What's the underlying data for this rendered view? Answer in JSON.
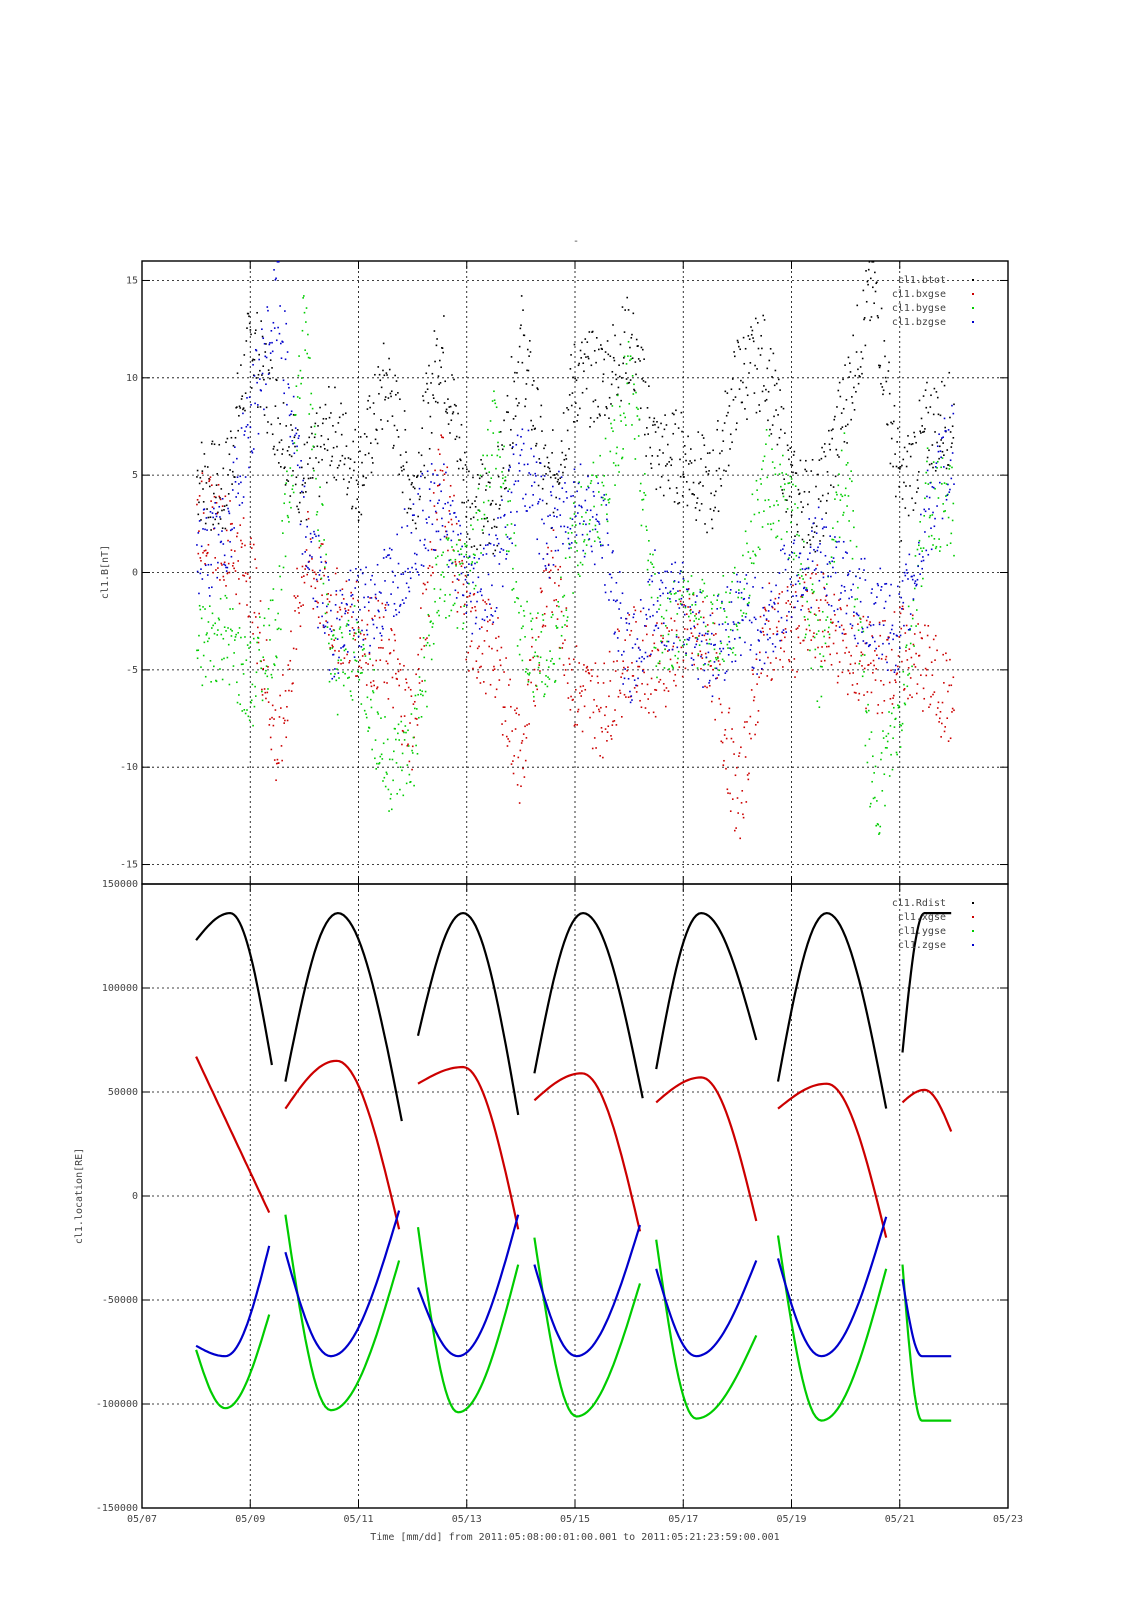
{
  "plot_title": "-",
  "footer": "Time [mm/dd]  from 2011:05:08:00:01:00.001  to  2011:05:21:23:59:00.001",
  "x_axis": {
    "type": "time",
    "range_days": [
      "2011-05-07",
      "2011-05-23"
    ],
    "ticks": [
      "05/07",
      "05/09",
      "05/11",
      "05/13",
      "05/15",
      "05/17",
      "05/19",
      "05/21",
      "05/23"
    ]
  },
  "colors": {
    "black": "#000000",
    "red": "#cc0000",
    "green": "#00cc00",
    "blue": "#0000cc"
  },
  "chart_data": [
    {
      "type": "scatter",
      "title": "",
      "ylabel": "cl1.B[nT]",
      "xlabel": "",
      "ylim": [
        -16,
        16
      ],
      "y_ticks": [
        "15",
        "10",
        "5",
        "0",
        "-5",
        "-10",
        "-15"
      ],
      "grid": true,
      "legend_position": "top-right",
      "series": [
        {
          "name": "cl1.btot",
          "color": "black",
          "x": [
            "05/08",
            "05/08.5",
            "05/09",
            "05/09.5",
            "05/10",
            "05/10.5",
            "05/11",
            "05/11.5",
            "05/12",
            "05/12.5",
            "05/13",
            "05/13.5",
            "05/14",
            "05/14.5",
            "05/15",
            "05/15.5",
            "05/16",
            "05/16.5",
            "05/17",
            "05/17.5",
            "05/18",
            "05/18.5",
            "05/19",
            "05/19.5",
            "05/20",
            "05/20.5",
            "05/21",
            "05/21.5",
            "05/22"
          ],
          "y": [
            5,
            4,
            12,
            8,
            4.5,
            7.5,
            5,
            10,
            4,
            12,
            4,
            3,
            12,
            4,
            10,
            10,
            12,
            6,
            6,
            4,
            10,
            11,
            4,
            3.5,
            9,
            15,
            4,
            7.5,
            8
          ]
        },
        {
          "name": "cl1.bxgse",
          "color": "red",
          "x": [
            "05/08",
            "05/08.5",
            "05/09",
            "05/09.5",
            "05/10",
            "05/10.5",
            "05/11",
            "05/11.5",
            "05/12",
            "05/12.5",
            "05/13",
            "05/13.5",
            "05/14",
            "05/14.5",
            "05/15",
            "05/15.5",
            "05/16",
            "05/16.5",
            "05/17",
            "05/17.5",
            "05/18",
            "05/18.5",
            "05/19",
            "05/19.5",
            "05/20",
            "05/20.5",
            "05/21",
            "05/21.5",
            "05/22"
          ],
          "y": [
            3,
            2,
            0,
            -9.5,
            1,
            -2,
            -3,
            -4,
            -8,
            6,
            -3,
            -4,
            -10,
            1,
            -6,
            -7,
            -4,
            -5,
            -3,
            -4,
            -12,
            -3,
            -3,
            -2,
            -4,
            -5,
            -4,
            -5,
            -7
          ]
        },
        {
          "name": "cl1.bygse",
          "color": "green",
          "x": [
            "05/08",
            "05/08.5",
            "05/09",
            "05/09.5",
            "05/10",
            "05/10.5",
            "05/11",
            "05/11.5",
            "05/12",
            "05/12.5",
            "05/13",
            "05/13.5",
            "05/14",
            "05/14.5",
            "05/15",
            "05/15.5",
            "05/16",
            "05/16.5",
            "05/17",
            "05/17.5",
            "05/18",
            "05/18.5",
            "05/19",
            "05/19.5",
            "05/20",
            "05/20.5",
            "05/21",
            "05/21.5",
            "05/22"
          ],
          "y": [
            -4,
            -3,
            -6,
            -2,
            13,
            -5,
            -4,
            -10,
            -9,
            0,
            -1,
            8,
            -3,
            -5,
            2,
            4,
            10,
            -3,
            -2,
            -3,
            -2,
            5,
            3,
            -5,
            6,
            -12,
            -7,
            4,
            3
          ]
        },
        {
          "name": "cl1.bzgse",
          "color": "blue",
          "x": [
            "05/08",
            "05/08.5",
            "05/09",
            "05/09.5",
            "05/10",
            "05/10.5",
            "05/11",
            "05/11.5",
            "05/12",
            "05/12.5",
            "05/13",
            "05/13.5",
            "05/14",
            "05/14.5",
            "05/15",
            "05/15.5",
            "05/16",
            "05/16.5",
            "05/17",
            "05/17.5",
            "05/18",
            "05/18.5",
            "05/19",
            "05/19.5",
            "05/20",
            "05/20.5",
            "05/21",
            "05/21.5",
            "05/22"
          ],
          "y": [
            1,
            1.5,
            8,
            14,
            2,
            -3,
            -2,
            -1,
            2,
            4,
            -1,
            0,
            6,
            2,
            4,
            2,
            -5,
            -1,
            -2,
            -4,
            -2,
            -3,
            0,
            1,
            -1,
            -2,
            -3,
            3,
            7
          ]
        }
      ]
    },
    {
      "type": "line",
      "title": "",
      "ylabel": "cl1.location[RE]",
      "xlabel": "Time [mm/dd]",
      "ylim": [
        -150000,
        150000
      ],
      "y_ticks": [
        "150000",
        "100000",
        "50000",
        "0",
        "-50000",
        "-100000",
        "-150000"
      ],
      "grid": true,
      "legend_position": "top-right",
      "series": [
        {
          "name": "cl1.Rdist",
          "color": "black",
          "segments": [
            {
              "x0": "05/08.0",
              "x1": "05/09.4",
              "y0": 123000,
              "ymax": 136000,
              "y1": 63000
            },
            {
              "x0": "05/09.65",
              "x1": "05/11.8",
              "y0": 55000,
              "ymax": 136000,
              "y1": 36000
            },
            {
              "x0": "05/12.1",
              "x1": "05/13.95",
              "y0": 77000,
              "ymax": 136000,
              "y1": 39000
            },
            {
              "x0": "05/14.25",
              "x1": "05/16.25",
              "y0": 59000,
              "ymax": 136000,
              "y1": 47000
            },
            {
              "x0": "05/16.5",
              "x1": "05/18.35",
              "y0": 61000,
              "ymax": 136000,
              "y1": 75000
            },
            {
              "x0": "05/18.75",
              "x1": "05/20.75",
              "y0": 55000,
              "ymax": 136000,
              "y1": 42000
            },
            {
              "x0": "05/21.05",
              "x1": "05/21.95",
              "y0": 69000,
              "ymax": 136000,
              "y1": 136000
            }
          ]
        },
        {
          "name": "cl1.xgse",
          "color": "red",
          "segments": [
            {
              "x0": "05/08.0",
              "x1": "05/09.35",
              "y0": 67000,
              "y1": -8000
            },
            {
              "x0": "05/09.65",
              "x1": "05/11.75",
              "y0": 42000,
              "ymax": 65000,
              "y1": -16000
            },
            {
              "x0": "05/12.1",
              "x1": "05/13.95",
              "y0": 54000,
              "ymax": 62000,
              "y1": -16000
            },
            {
              "x0": "05/14.25",
              "x1": "05/16.2",
              "y0": 46000,
              "ymax": 59000,
              "y1": -17000
            },
            {
              "x0": "05/16.5",
              "x1": "05/18.35",
              "y0": 45000,
              "ymax": 57000,
              "y1": -12000
            },
            {
              "x0": "05/18.75",
              "x1": "05/20.75",
              "y0": 42000,
              "ymax": 54000,
              "y1": -20000
            },
            {
              "x0": "05/21.05",
              "x1": "05/21.95",
              "y0": 45000,
              "ymax": 51000,
              "y1": 31000
            }
          ]
        },
        {
          "name": "cl1.ygse",
          "color": "green",
          "segments": [
            {
              "x0": "05/08.0",
              "x1": "05/09.35",
              "y0": -74000,
              "ymin": -102000,
              "y1": -57000
            },
            {
              "x0": "05/09.65",
              "x1": "05/11.75",
              "y0": -9000,
              "ymin": -103000,
              "y1": -31000
            },
            {
              "x0": "05/12.1",
              "x1": "05/13.95",
              "y0": -15000,
              "ymin": -104000,
              "y1": -33000
            },
            {
              "x0": "05/14.25",
              "x1": "05/16.2",
              "y0": -20000,
              "ymin": -106000,
              "y1": -42000
            },
            {
              "x0": "05/16.5",
              "x1": "05/18.35",
              "y0": -21000,
              "ymin": -107000,
              "y1": -67000
            },
            {
              "x0": "05/18.75",
              "x1": "05/20.75",
              "y0": -19000,
              "ymin": -108000,
              "y1": -35000
            },
            {
              "x0": "05/21.05",
              "x1": "05/21.95",
              "y0": -33000,
              "ymin": -108000,
              "y1": -108000
            }
          ]
        },
        {
          "name": "cl1.zgse",
          "color": "blue",
          "segments": [
            {
              "x0": "05/08.0",
              "x1": "05/09.35",
              "y0": -72000,
              "ymin": -77000,
              "y1": -24000
            },
            {
              "x0": "05/09.65",
              "x1": "05/11.75",
              "y0": -27000,
              "ymin": -77000,
              "y1": -7000
            },
            {
              "x0": "05/12.1",
              "x1": "05/13.95",
              "y0": -44000,
              "ymin": -77000,
              "y1": -9000
            },
            {
              "x0": "05/14.25",
              "x1": "05/16.2",
              "y0": -33000,
              "ymin": -77000,
              "y1": -14000
            },
            {
              "x0": "05/16.5",
              "x1": "05/18.35",
              "y0": -35000,
              "ymin": -77000,
              "y1": -31000
            },
            {
              "x0": "05/18.75",
              "x1": "05/20.75",
              "y0": -30000,
              "ymin": -77000,
              "y1": -10000
            },
            {
              "x0": "05/21.05",
              "x1": "05/21.95",
              "y0": -40000,
              "ymin": -77000,
              "y1": -77000
            }
          ]
        }
      ]
    }
  ]
}
